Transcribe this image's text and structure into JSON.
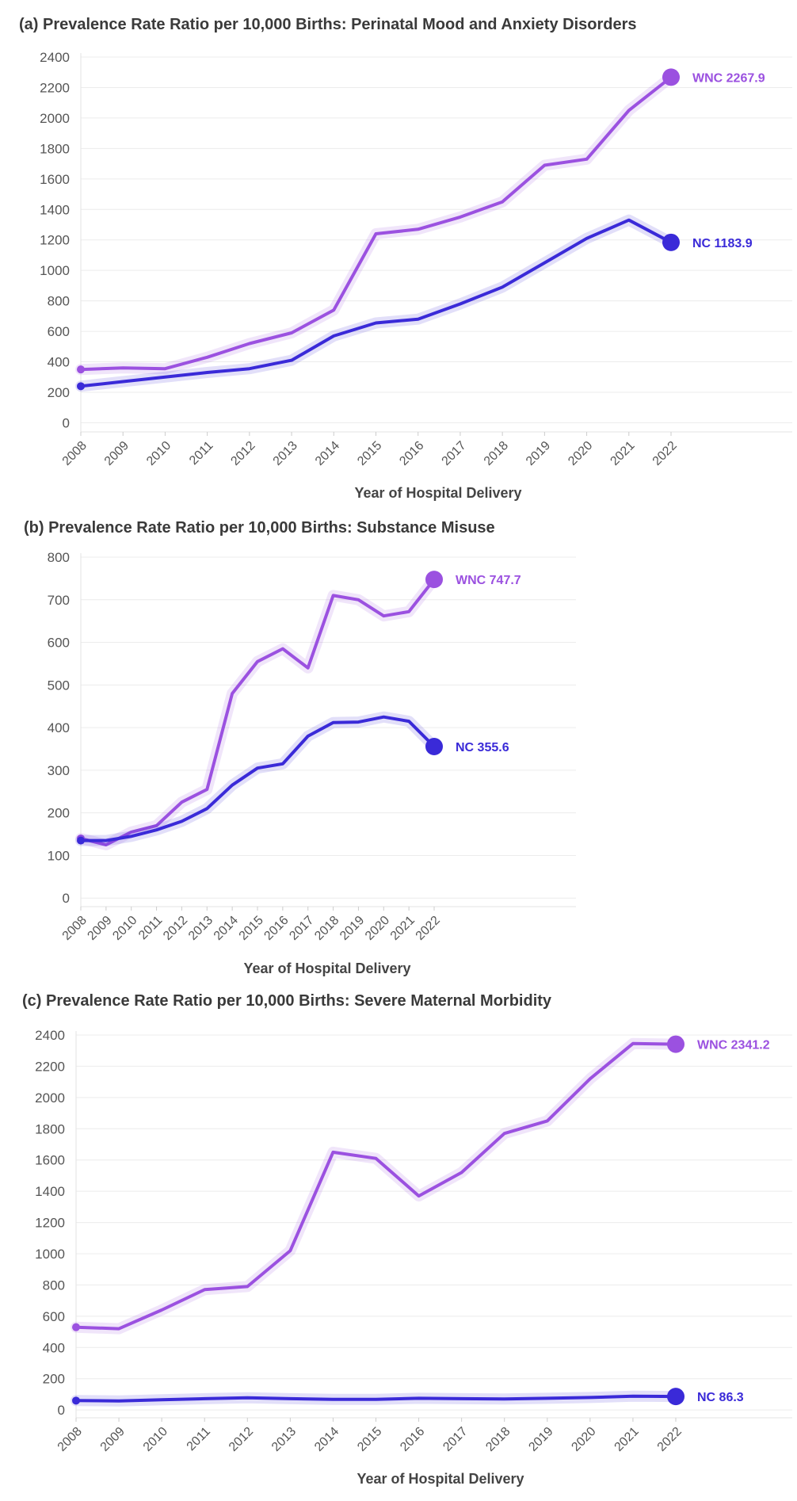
{
  "chart_data": [
    {
      "type": "line",
      "title": "(a) Prevalence Rate Ratio per 10,000 Births: Perinatal Mood and Anxiety Disorders",
      "xlabel": "Year of Hospital Delivery",
      "ylabel": "",
      "categories": [
        "2008",
        "2009",
        "2010",
        "2011",
        "2012",
        "2013",
        "2014",
        "2015",
        "2016",
        "2017",
        "2018",
        "2019",
        "2020",
        "2021",
        "2022"
      ],
      "yticks": [
        0,
        200,
        400,
        600,
        800,
        1000,
        1200,
        1400,
        1600,
        1800,
        2000,
        2200,
        2400
      ],
      "ylim": [
        -60,
        2400
      ],
      "grid": true,
      "series": [
        {
          "name": "WNC",
          "color": "#9b51e0",
          "label": "WNC 2267.9",
          "values": [
            350,
            360,
            355,
            430,
            520,
            590,
            740,
            1240,
            1270,
            1350,
            1450,
            1690,
            1730,
            2050,
            2267.9
          ]
        },
        {
          "name": "NC",
          "color": "#3a2ad8",
          "label": "NC 1183.9",
          "values": [
            240,
            270,
            300,
            330,
            355,
            410,
            570,
            655,
            680,
            780,
            890,
            1050,
            1210,
            1330,
            1183.9
          ]
        }
      ]
    },
    {
      "type": "line",
      "title": "(b) Prevalence Rate Ratio per 10,000 Births: Substance Misuse",
      "xlabel": "Year of Hospital Delivery",
      "ylabel": "",
      "categories": [
        "2008",
        "2009",
        "2010",
        "2011",
        "2012",
        "2013",
        "2014",
        "2015",
        "2016",
        "2017",
        "2018",
        "2019",
        "2020",
        "2021",
        "2022"
      ],
      "yticks": [
        0,
        100,
        200,
        300,
        400,
        500,
        600,
        700,
        800
      ],
      "ylim": [
        -20,
        800
      ],
      "grid": true,
      "series": [
        {
          "name": "WNC",
          "color": "#9b51e0",
          "label": "WNC 747.7",
          "values": [
            140,
            125,
            155,
            170,
            225,
            255,
            480,
            555,
            585,
            540,
            710,
            700,
            662,
            672,
            747.7
          ]
        },
        {
          "name": "NC",
          "color": "#3a2ad8",
          "label": "NC 355.6",
          "values": [
            135,
            135,
            145,
            160,
            180,
            210,
            265,
            305,
            315,
            380,
            412,
            413,
            425,
            415,
            355.6
          ]
        }
      ]
    },
    {
      "type": "line",
      "title": "(c) Prevalence Rate Ratio per 10,000 Births: Severe Maternal Morbidity",
      "xlabel": "Year of Hospital Delivery",
      "ylabel": "",
      "categories": [
        "2008",
        "2009",
        "2010",
        "2011",
        "2012",
        "2013",
        "2014",
        "2015",
        "2016",
        "2017",
        "2018",
        "2019",
        "2020",
        "2021",
        "2022"
      ],
      "yticks": [
        0,
        200,
        400,
        600,
        800,
        1000,
        1200,
        1400,
        1600,
        1800,
        2000,
        2200,
        2400
      ],
      "ylim": [
        -50,
        2400
      ],
      "grid": true,
      "series": [
        {
          "name": "WNC",
          "color": "#9b51e0",
          "label": "WNC 2341.2",
          "values": [
            530,
            520,
            640,
            770,
            790,
            1020,
            1650,
            1610,
            1370,
            1520,
            1770,
            1850,
            2120,
            2345,
            2341.2
          ]
        },
        {
          "name": "NC",
          "color": "#3a2ad8",
          "label": "NC 86.3",
          "values": [
            60,
            58,
            65,
            72,
            78,
            72,
            68,
            68,
            75,
            72,
            70,
            75,
            80,
            88,
            86.3
          ]
        }
      ]
    }
  ]
}
